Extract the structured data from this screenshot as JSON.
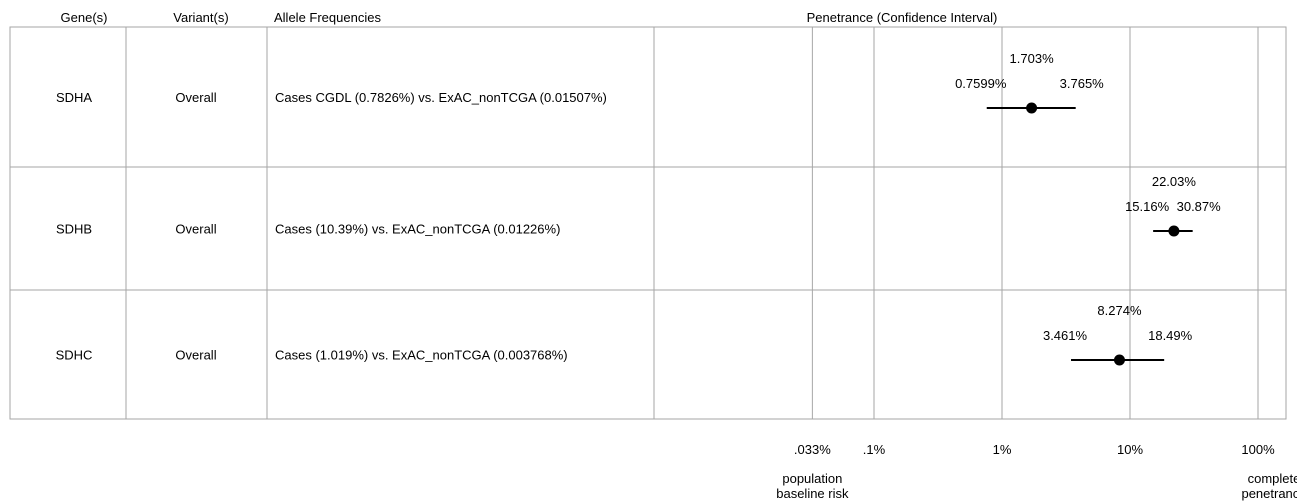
{
  "chart_data": {
    "type": "forest",
    "title": "",
    "columns": {
      "gene": "Gene(s)",
      "variant": "Variant(s)",
      "freq": "Allele Frequencies",
      "penetrance": "Penetrance (Confidence Interval)"
    },
    "x_scale": "log",
    "xlim_percent": [
      0.0004,
      100
    ],
    "ticks": [
      {
        "value": 0.033,
        "label": ".033%",
        "annotation": [
          "population",
          "baseline risk"
        ]
      },
      {
        "value": 0.1,
        "label": ".1%",
        "annotation": []
      },
      {
        "value": 1,
        "label": "1%",
        "annotation": []
      },
      {
        "value": 10,
        "label": "10%",
        "annotation": []
      },
      {
        "value": 100,
        "label": "100%",
        "annotation": [
          "complete",
          "penetrance"
        ]
      }
    ],
    "rows": [
      {
        "gene": "SDHA",
        "variant": "Overall",
        "freq": "Cases CGDL (0.7826%) vs. ExAC_nonTCGA (0.01507%)",
        "estimate": 1.703,
        "lower": 0.7599,
        "upper": 3.765,
        "estimate_label": "1.703%",
        "lower_label": "0.7599%",
        "upper_label": "3.765%"
      },
      {
        "gene": "SDHB",
        "variant": "Overall",
        "freq": "Cases (10.39%) vs. ExAC_nonTCGA (0.01226%)",
        "estimate": 22.03,
        "lower": 15.16,
        "upper": 30.87,
        "estimate_label": "22.03%",
        "lower_label": "15.16%",
        "upper_label": "30.87%"
      },
      {
        "gene": "SDHC",
        "variant": "Overall",
        "freq": "Cases (1.019%) vs. ExAC_nonTCGA (0.003768%)",
        "estimate": 8.274,
        "lower": 3.461,
        "upper": 18.49,
        "estimate_label": "8.274%",
        "lower_label": "3.461%",
        "upper_label": "18.49%"
      }
    ]
  }
}
